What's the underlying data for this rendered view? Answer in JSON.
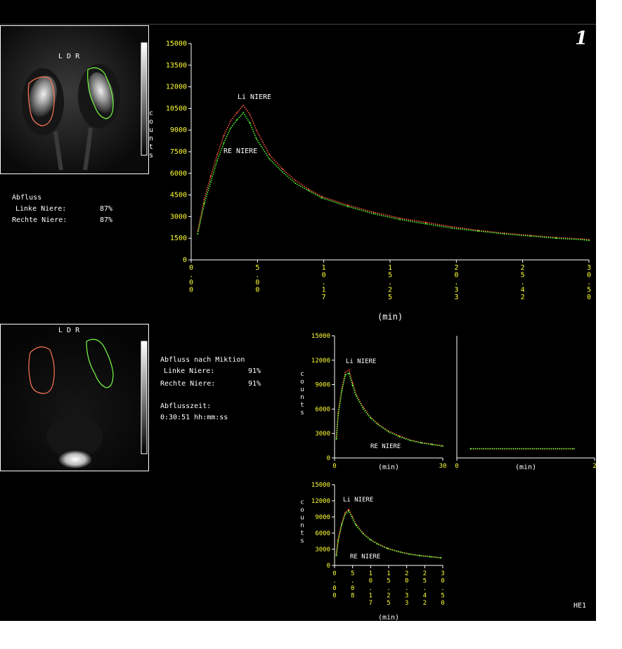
{
  "colors": {
    "background": "#000000",
    "axis": "#ffffff",
    "tick_label": "#ffff33",
    "left_roi": "#ff7755",
    "right_roi": "#77ff44",
    "label": "#ffffff"
  },
  "page_number": "1",
  "scan_top": {
    "orientation_label": "L D R"
  },
  "scan_bottom": {
    "orientation_label": "L D R"
  },
  "colorbar_label": "counts",
  "outflow": {
    "heading": "Abfluss",
    "left_label": "Linke Niere:",
    "left_value": "87%",
    "right_label": "Rechte Niere:",
    "right_value": "87%"
  },
  "outflow_post": {
    "heading": "Abfluss nach Miktion",
    "left_label": "Linke Niere:",
    "left_value": "91%",
    "right_label": "Rechte Niere:",
    "right_value": "91%",
    "time_heading": "Abflusszeit:",
    "time_value": "0:30:51 hh:mm:ss"
  },
  "footer_code": "HE1",
  "chart_data": [
    {
      "type": "line",
      "ylabel": "counts",
      "xlabel": "(min)",
      "y_ticks": [
        "0",
        "1500",
        "3000",
        "4500",
        "6000",
        "7500",
        "9000",
        "10500",
        "12000",
        "13500",
        "15000"
      ],
      "x_ticks": [
        "0\n.\n0\n0",
        "5\n.\n0\n0",
        "1\n0\n.\n1\n7",
        "1\n5\n.\n2\n5",
        "2\n0\n.\n3\n3",
        "2\n5\n.\n4\n2",
        "3\n0\n.\n5\n0"
      ],
      "ylim": [
        0,
        15000
      ],
      "xlim": [
        0,
        30.5
      ],
      "series": [
        {
          "name": "Li NIERE",
          "color": "#ff5544",
          "x": [
            0.5,
            1,
            1.5,
            2,
            2.5,
            3,
            3.5,
            4,
            4.5,
            5,
            6,
            7,
            8,
            9,
            10,
            12,
            14,
            16,
            18,
            20,
            22,
            24,
            26,
            28,
            30,
            30.5
          ],
          "y": [
            2000,
            4200,
            5800,
            7300,
            8600,
            9600,
            10200,
            10700,
            10100,
            9000,
            7300,
            6300,
            5500,
            4900,
            4400,
            3800,
            3300,
            2900,
            2600,
            2300,
            2050,
            1850,
            1700,
            1550,
            1450,
            1400
          ]
        },
        {
          "name": "RE NIERE",
          "color": "#55ff33",
          "x": [
            0.5,
            1,
            1.5,
            2,
            2.5,
            3,
            3.5,
            4,
            4.5,
            5,
            6,
            7,
            8,
            9,
            10,
            12,
            14,
            16,
            18,
            20,
            22,
            24,
            26,
            28,
            30,
            30.5
          ],
          "y": [
            1800,
            3900,
            5400,
            6900,
            8100,
            9100,
            9700,
            10200,
            9500,
            8400,
            7000,
            6100,
            5300,
            4800,
            4300,
            3700,
            3200,
            2800,
            2500,
            2200,
            2000,
            1800,
            1650,
            1500,
            1400,
            1350
          ]
        }
      ]
    },
    {
      "type": "line",
      "ylabel": "counts",
      "xlabel": "(min)",
      "y_ticks": [
        "0",
        "3000",
        "6000",
        "9000",
        "12000",
        "15000"
      ],
      "x_ticks": [
        "0",
        "30"
      ],
      "ylim": [
        0,
        15000
      ],
      "xlim": [
        0,
        30
      ],
      "series": [
        {
          "name": "Li NIERE",
          "color": "#ff5544",
          "x": [
            0.5,
            1,
            2,
            3,
            4,
            5,
            6,
            8,
            10,
            12,
            15,
            18,
            21,
            24,
            27,
            30
          ],
          "y": [
            2500,
            5500,
            8500,
            10500,
            10800,
            9200,
            7800,
            6200,
            5000,
            4200,
            3300,
            2700,
            2200,
            1900,
            1700,
            1500
          ]
        },
        {
          "name": "RE NIERE",
          "color": "#55ff33",
          "x": [
            0.5,
            1,
            2,
            3,
            4,
            5,
            6,
            8,
            10,
            12,
            15,
            18,
            21,
            24,
            27,
            30
          ],
          "y": [
            2300,
            5200,
            8200,
            10200,
            10400,
            8900,
            7600,
            6000,
            4900,
            4100,
            3200,
            2600,
            2150,
            1850,
            1650,
            1450
          ]
        }
      ]
    },
    {
      "type": "line",
      "xlabel": "(min)",
      "x_ticks": [
        "0",
        "2"
      ],
      "ylim": [
        0,
        15000
      ],
      "xlim": [
        0,
        2
      ],
      "series": [
        {
          "name": "Li NIERE",
          "color": "#ff5544",
          "x": [
            0.2,
            1.7
          ],
          "y": [
            1100,
            1100
          ]
        },
        {
          "name": "RE NIERE",
          "color": "#55ff33",
          "x": [
            0.2,
            1.7
          ],
          "y": [
            1150,
            1150
          ]
        }
      ]
    },
    {
      "type": "line",
      "ylabel": "counts",
      "xlabel": "(min)",
      "y_ticks": [
        "0",
        "3000",
        "6000",
        "9000",
        "12000",
        "15000"
      ],
      "x_ticks": [
        "0\n.\n0\n0",
        "5\n.\n0\n8",
        "1\n0\n.\n1\n7",
        "1\n5\n.\n2\n5",
        "2\n0\n.\n3\n3",
        "2\n5\n.\n4\n2",
        "3\n0\n.\n5\n0"
      ],
      "ylim": [
        0,
        15000
      ],
      "xlim": [
        0,
        30.5
      ],
      "series": [
        {
          "name": "Li NIERE",
          "color": "#ff5544",
          "x": [
            0.5,
            1,
            2,
            3,
            4,
            5,
            6,
            8,
            10,
            12,
            15,
            18,
            21,
            24,
            27,
            30
          ],
          "y": [
            2000,
            4800,
            7800,
            9800,
            10400,
            9100,
            7700,
            6000,
            4900,
            4100,
            3200,
            2600,
            2150,
            1850,
            1650,
            1450
          ]
        },
        {
          "name": "RE NIERE",
          "color": "#55ff33",
          "x": [
            0.5,
            1,
            2,
            3,
            4,
            5,
            6,
            8,
            10,
            12,
            15,
            18,
            21,
            24,
            27,
            30
          ],
          "y": [
            1800,
            4500,
            7500,
            9500,
            10100,
            8800,
            7500,
            5900,
            4800,
            4000,
            3100,
            2550,
            2100,
            1800,
            1600,
            1400
          ]
        }
      ]
    }
  ]
}
